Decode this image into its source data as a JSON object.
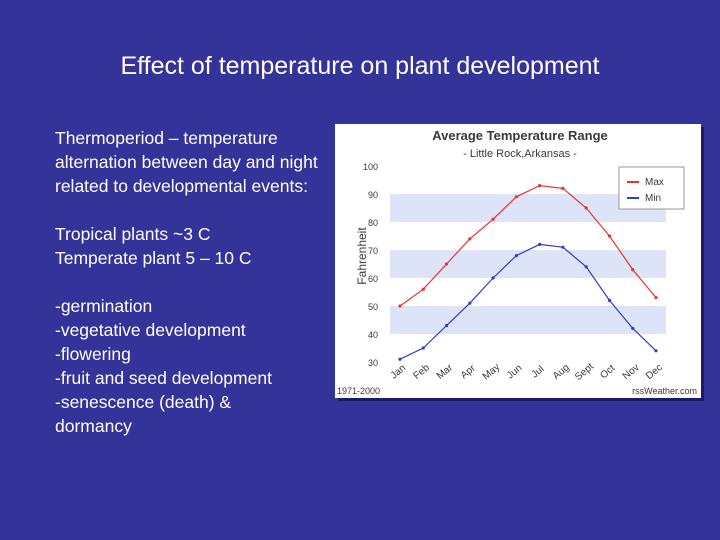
{
  "slide": {
    "title": "Effect of temperature on plant development",
    "definition": "Thermoperiod – temperature alternation between day and night related to developmental events:",
    "tropical": "Tropical plants ~3 C",
    "temperate": "Temperate plant 5 – 10 C",
    "events": [
      "-germination",
      "-vegetative development",
      "-flowering",
      "-fruit and seed development",
      "-senescence (death) &",
      "dormancy"
    ]
  },
  "chart_data": {
    "type": "line",
    "title": "Average Temperature Range",
    "subtitle": "- Little Rock,Arkansas -",
    "ylabel": "Fahrenheit",
    "xlabel": "",
    "categories": [
      "Jan",
      "Feb",
      "Mar",
      "Apr",
      "May",
      "Jun",
      "Jul",
      "Aug",
      "Sept",
      "Oct",
      "Nov",
      "Dec"
    ],
    "ylim": [
      30,
      100
    ],
    "yticks": [
      "30",
      "40",
      "50",
      "60",
      "70",
      "80",
      "90",
      "100"
    ],
    "series": [
      {
        "name": "Max",
        "color": "#e8322d",
        "values": [
          50,
          56,
          65,
          74,
          81,
          89,
          93,
          92,
          85,
          75,
          63,
          53
        ]
      },
      {
        "name": "Min",
        "color": "#2d3ec8",
        "values": [
          31,
          35,
          43,
          51,
          60,
          68,
          72,
          71,
          64,
          52,
          42,
          34
        ]
      }
    ],
    "legend_position": "top-right",
    "bands": true,
    "footer_left": "1971-2000",
    "footer_right": "rssWeather.com"
  }
}
